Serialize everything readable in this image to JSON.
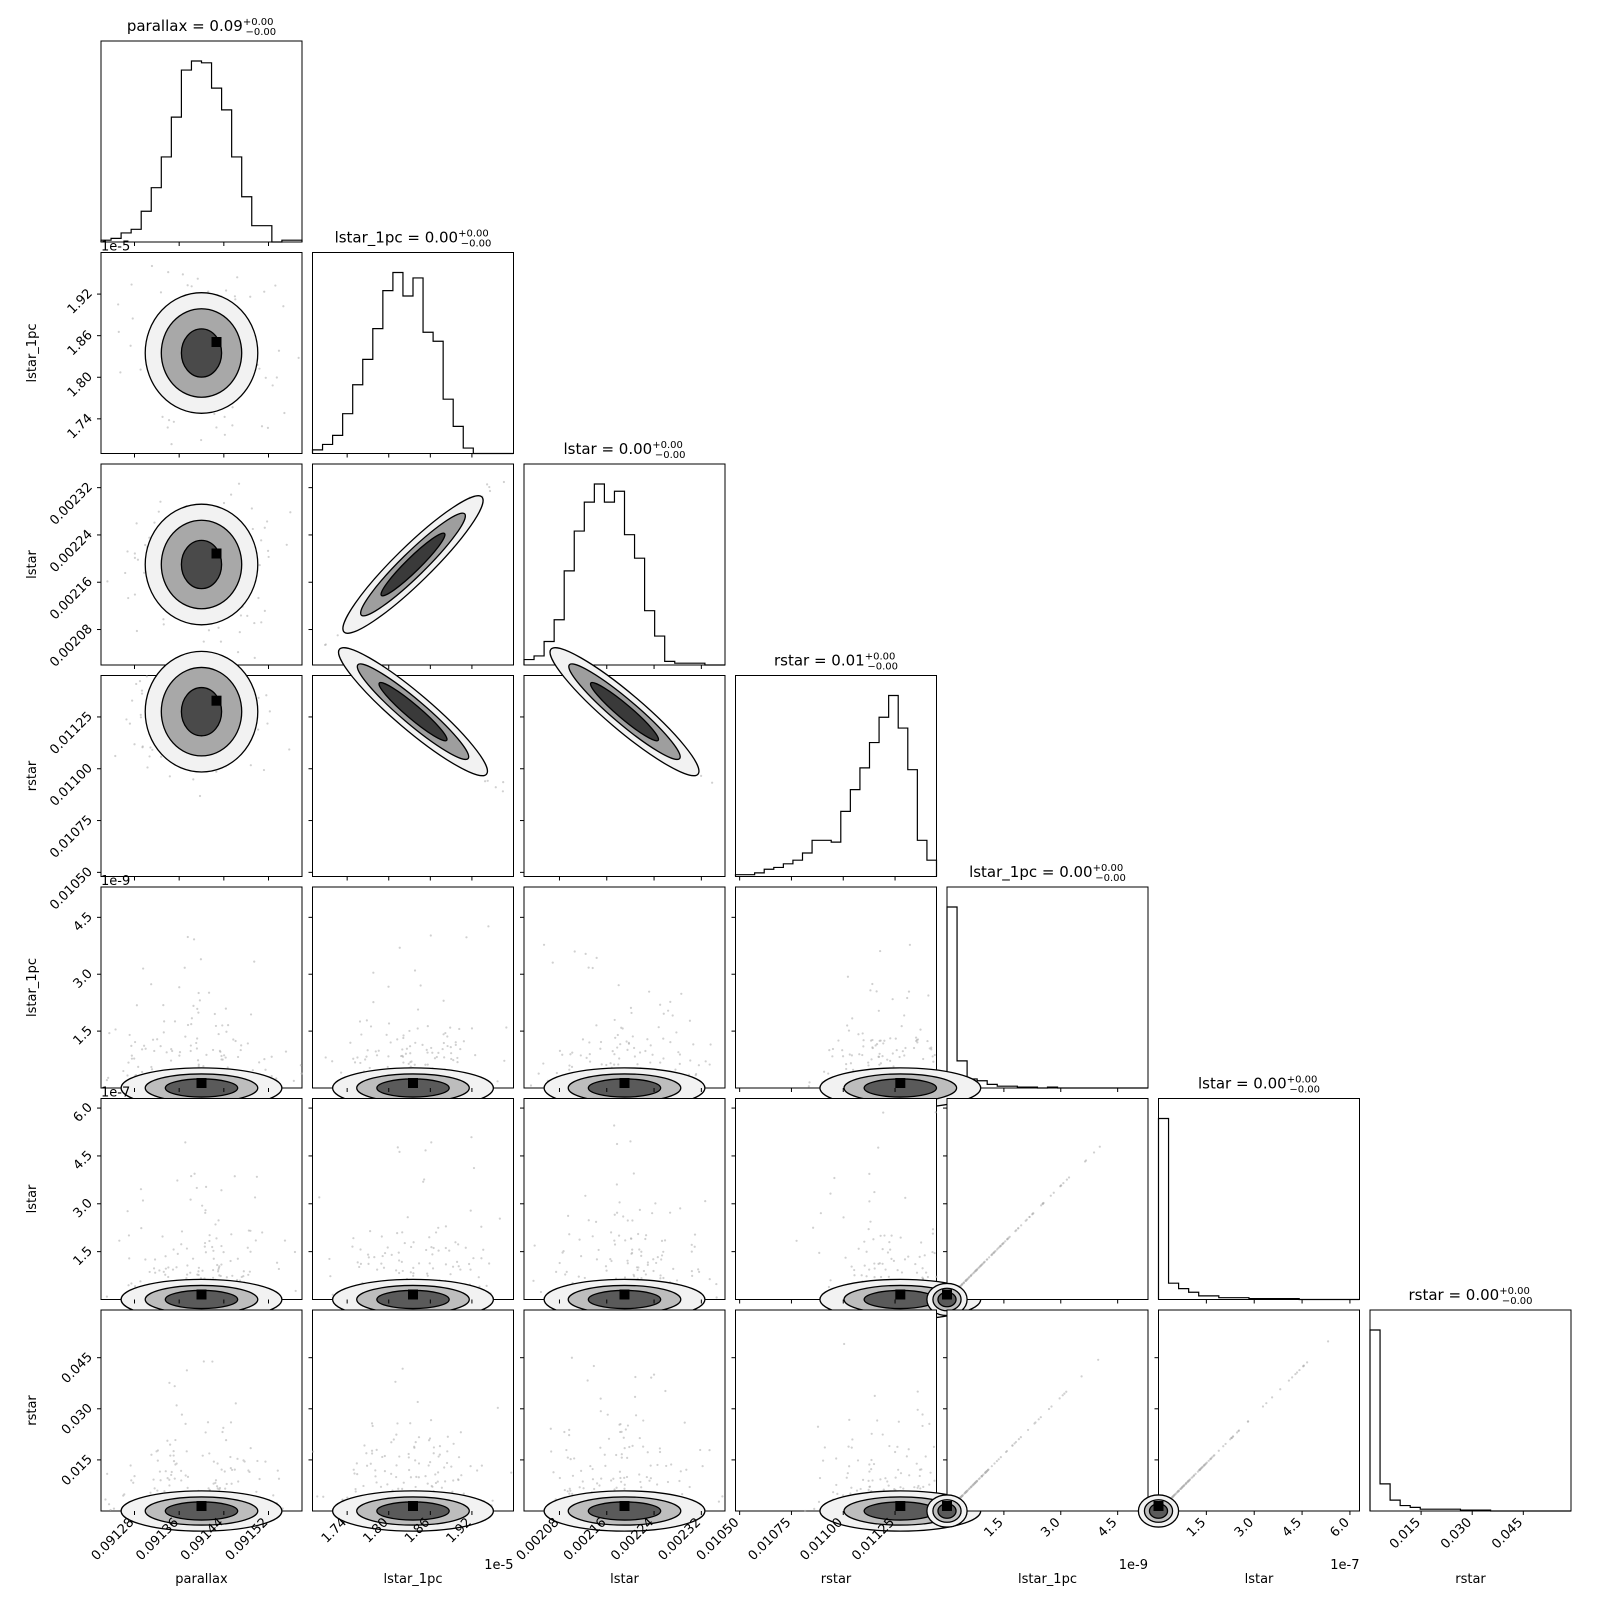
{
  "chart_data": {
    "type": "corner",
    "params": [
      {
        "name": "parallax",
        "title": "parallax = 0.09",
        "median": 0.0914,
        "offset": "",
        "range": [
          0.09122,
          0.09158
        ],
        "ticks": [
          "0.09128",
          "0.09136",
          "0.09144",
          "0.09152"
        ],
        "tick_values": [
          0.09128,
          0.09136,
          0.09144,
          0.09152
        ],
        "hist": [
          0.01,
          0.02,
          0.05,
          0.07,
          0.17,
          0.3,
          0.47,
          0.69,
          0.95,
          1.0,
          0.99,
          0.85,
          0.73,
          0.47,
          0.25,
          0.09,
          0.09,
          0.0,
          0.01,
          0.01
        ]
      },
      {
        "name": "lstar_1pc",
        "title": "lstar_1pc = 0.00",
        "median": 1.8e-05,
        "offset": "1e-5",
        "scale": 1e-05,
        "range": [
          1.69,
          1.98
        ],
        "ticks": [
          "1.74",
          "1.80",
          "1.86",
          "1.92"
        ],
        "tick_values": [
          1.74,
          1.8,
          1.86,
          1.92
        ],
        "hist": [
          0.02,
          0.05,
          0.1,
          0.22,
          0.38,
          0.52,
          0.69,
          0.9,
          1.0,
          0.87,
          0.97,
          0.67,
          0.62,
          0.3,
          0.15,
          0.03,
          0.0,
          0.0,
          0.0,
          0.0
        ]
      },
      {
        "name": "lstar",
        "title": "lstar = 0.00",
        "median": 0.00215,
        "offset": "",
        "range": [
          0.00202,
          0.00236
        ],
        "ticks": [
          "0.00208",
          "0.00216",
          "0.00224",
          "0.00232"
        ],
        "tick_values": [
          0.00208,
          0.00216,
          0.00224,
          0.00232
        ],
        "hist": [
          0.03,
          0.05,
          0.13,
          0.25,
          0.52,
          0.74,
          0.9,
          1.0,
          0.9,
          0.96,
          0.72,
          0.59,
          0.3,
          0.16,
          0.02,
          0.01,
          0.01,
          0.01,
          0.0,
          0.0
        ]
      },
      {
        "name": "rstar",
        "title": "rstar = 0.01",
        "median": 0.0112,
        "offset": "",
        "range": [
          0.01048,
          0.01145
        ],
        "ticks": [
          "0.01050",
          "0.01075",
          "0.01100",
          "0.01125"
        ],
        "tick_values": [
          0.0105,
          0.01075,
          0.011,
          0.01125
        ],
        "hist": [
          0.01,
          0.01,
          0.02,
          0.04,
          0.05,
          0.07,
          0.09,
          0.13,
          0.2,
          0.2,
          0.19,
          0.36,
          0.48,
          0.6,
          0.74,
          0.88,
          1.0,
          0.82,
          0.59,
          0.2,
          0.09
        ]
      },
      {
        "name": "lstar_1pc",
        "title": "lstar_1pc = 0.00",
        "median": 0.0,
        "offset": "1e-9",
        "scale": 1e-09,
        "range": [
          0.0,
          5.3
        ],
        "ticks": [
          "1.5",
          "3.0",
          "4.5"
        ],
        "tick_values": [
          1.5,
          3.0,
          4.5
        ],
        "hist": [
          1.0,
          0.15,
          0.05,
          0.04,
          0.02,
          0.01,
          0.01,
          0.005,
          0.005,
          0.0,
          0.005,
          0.0,
          0.0,
          0.0,
          0.0,
          0.0,
          0.0,
          0.0,
          0.0,
          0.0
        ]
      },
      {
        "name": "lstar",
        "title": "lstar = 0.00",
        "median": 0.0,
        "offset": "1e-7",
        "scale": 1e-07,
        "range": [
          0.0,
          6.3
        ],
        "ticks": [
          "1.5",
          "3.0",
          "4.5",
          "6.0"
        ],
        "tick_values": [
          1.5,
          3.0,
          4.5,
          6.0
        ],
        "hist": [
          1.0,
          0.09,
          0.06,
          0.04,
          0.02,
          0.02,
          0.01,
          0.01,
          0.01,
          0.005,
          0.005,
          0.005,
          0.005,
          0.005,
          0.0,
          0.0,
          0.0,
          0.0,
          0.0,
          0.0
        ]
      },
      {
        "name": "rstar",
        "title": "rstar = 0.00",
        "median": 0.0,
        "offset": "",
        "range": [
          0.0,
          0.059
        ],
        "ticks": [
          "0.015",
          "0.030",
          "0.045"
        ],
        "tick_values": [
          0.015,
          0.03,
          0.045
        ],
        "hist": [
          1.0,
          0.15,
          0.06,
          0.03,
          0.02,
          0.01,
          0.01,
          0.01,
          0.01,
          0.005,
          0.005,
          0.005,
          0.0,
          0.0,
          0.0,
          0.0,
          0.0,
          0.0,
          0.0,
          0.0
        ]
      }
    ],
    "row_ticks": [
      {
        "ticks": [],
        "tick_values": [],
        "offset": ""
      },
      {
        "ticks": [
          "1.74",
          "1.80",
          "1.86",
          "1.92"
        ],
        "tick_values": [
          1.74,
          1.8,
          1.86,
          1.92
        ],
        "offset": "1e-5"
      },
      {
        "ticks": [
          "0.00208",
          "0.00216",
          "0.00224",
          "0.00232"
        ],
        "tick_values": [
          0.00208,
          0.00216,
          0.00224,
          0.00232
        ],
        "offset": ""
      },
      {
        "ticks": [
          "0.01050",
          "0.01075",
          "0.01100",
          "0.01125"
        ],
        "tick_values": [
          0.0105,
          0.01075,
          0.011,
          0.01125
        ],
        "offset": ""
      },
      {
        "ticks": [
          "1.5",
          "3.0",
          "4.5"
        ],
        "tick_values": [
          1.5,
          3.0,
          4.5
        ],
        "offset": "1e-9"
      },
      {
        "ticks": [
          "1.5",
          "3.0",
          "4.5",
          "6.0"
        ],
        "tick_values": [
          1.5,
          3.0,
          4.5,
          6.0
        ],
        "offset": "1e-7"
      },
      {
        "ticks": [
          "0.015",
          "0.030",
          "0.045"
        ],
        "tick_values": [
          0.015,
          0.03,
          0.045
        ],
        "offset": ""
      }
    ],
    "title_superscript": "+0.00",
    "title_subscript": "−0.00",
    "line_color": "#000000",
    "point_color": "#b0b0b0"
  }
}
